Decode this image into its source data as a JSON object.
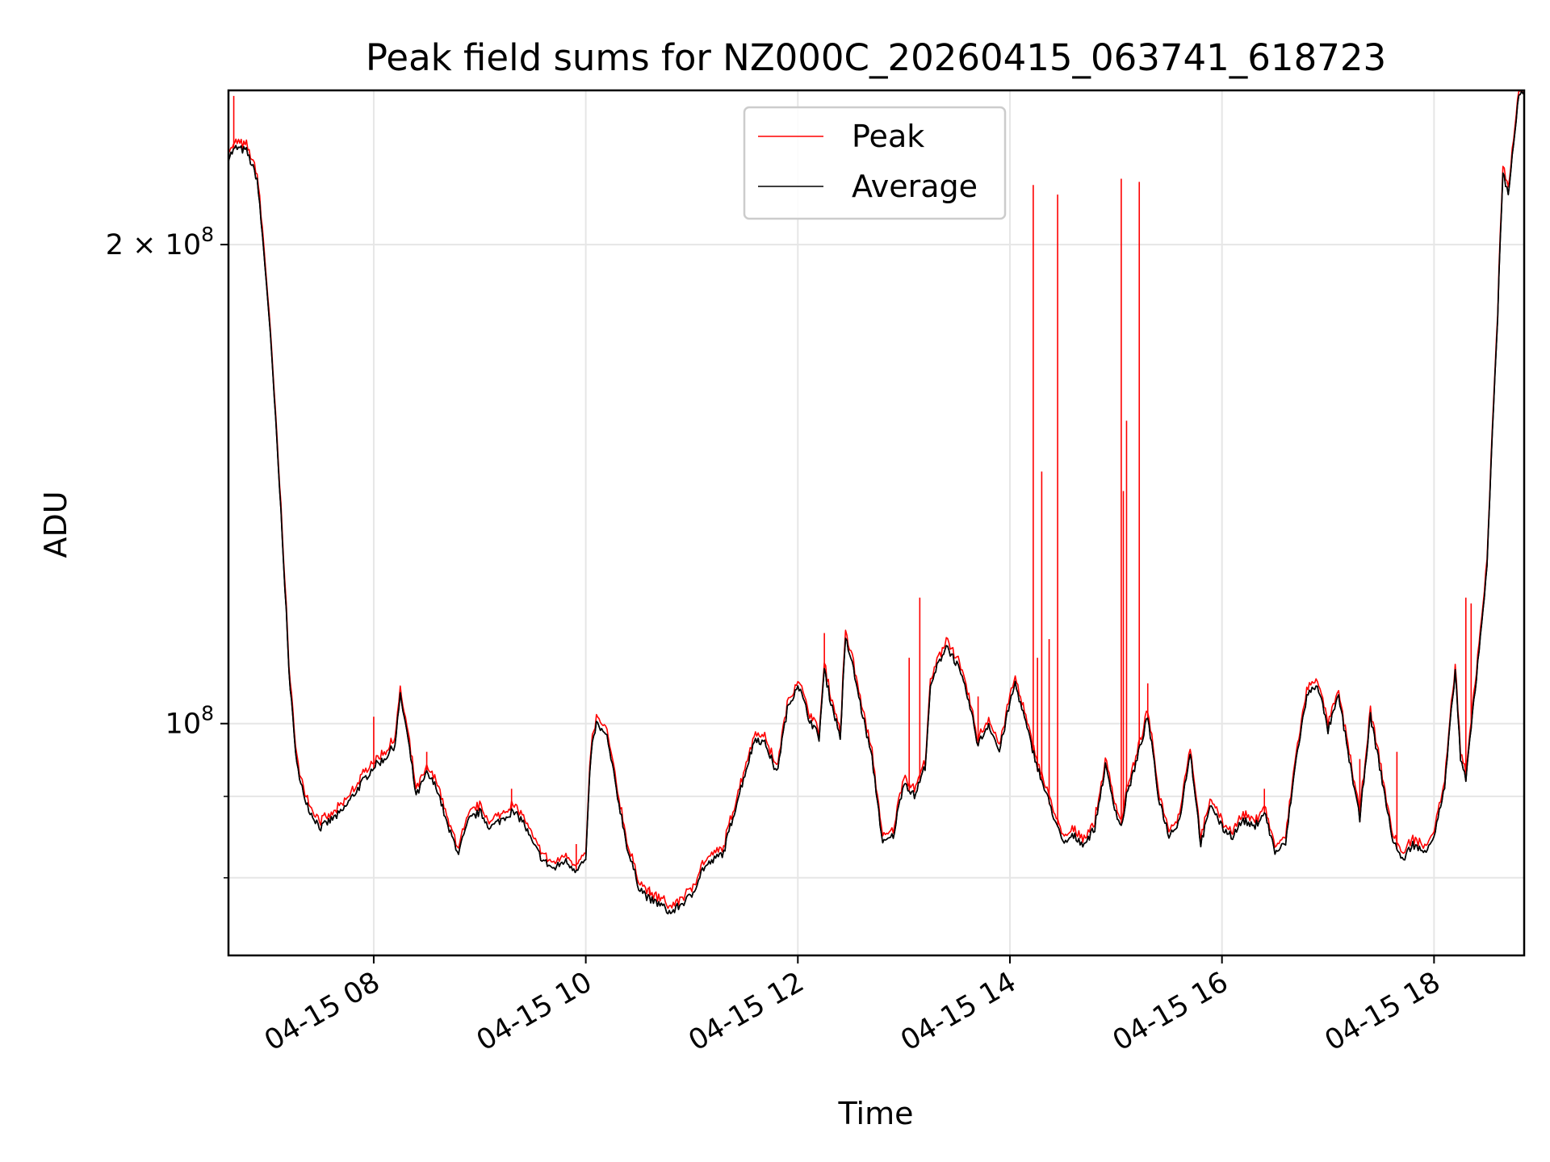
{
  "chart_data": {
    "type": "line",
    "title": "Peak field sums for NZ000C_20260415_063741_618723",
    "xlabel": "Time",
    "ylabel": "ADU",
    "yscale": "log",
    "ylim": [
      71500000,
      250000000
    ],
    "xlim_hours": [
      6.63,
      18.85
    ],
    "grid": true,
    "legend_position": "upper center",
    "x_ticks": [
      {
        "hour": 8,
        "label": "04-15 08"
      },
      {
        "hour": 10,
        "label": "04-15 10"
      },
      {
        "hour": 12,
        "label": "04-15 12"
      },
      {
        "hour": 14,
        "label": "04-15 14"
      },
      {
        "hour": 16,
        "label": "04-15 16"
      },
      {
        "hour": 18,
        "label": "04-15 18"
      }
    ],
    "y_ticks_major": [
      {
        "value": 100000000,
        "label_base": "10",
        "label_exp": "8"
      },
      {
        "value": 200000000,
        "label_base": "2 × 10",
        "label_exp": "8"
      }
    ],
    "y_ticks_minor": [
      80000000,
      90000000
    ],
    "average_points": [
      [
        6.63,
        227
      ],
      [
        6.7,
        230
      ],
      [
        6.8,
        229
      ],
      [
        6.9,
        220
      ],
      [
        7.0,
        185
      ],
      [
        7.1,
        145
      ],
      [
        7.2,
        108
      ],
      [
        7.25,
        98
      ],
      [
        7.3,
        92
      ],
      [
        7.4,
        88
      ],
      [
        7.5,
        86
      ],
      [
        7.6,
        87
      ],
      [
        7.7,
        88
      ],
      [
        7.8,
        90
      ],
      [
        7.9,
        92
      ],
      [
        8.0,
        94
      ],
      [
        8.1,
        95
      ],
      [
        8.2,
        97
      ],
      [
        8.25,
        104
      ],
      [
        8.3,
        100
      ],
      [
        8.35,
        95
      ],
      [
        8.4,
        90
      ],
      [
        8.5,
        93
      ],
      [
        8.6,
        91
      ],
      [
        8.7,
        86
      ],
      [
        8.8,
        83
      ],
      [
        8.9,
        87
      ],
      [
        9.0,
        88
      ],
      [
        9.1,
        86
      ],
      [
        9.2,
        87
      ],
      [
        9.3,
        88
      ],
      [
        9.4,
        87
      ],
      [
        9.5,
        84
      ],
      [
        9.6,
        82
      ],
      [
        9.7,
        81
      ],
      [
        9.8,
        82
      ],
      [
        9.9,
        81
      ],
      [
        10.0,
        82
      ],
      [
        10.05,
        96
      ],
      [
        10.1,
        100
      ],
      [
        10.2,
        98
      ],
      [
        10.3,
        90
      ],
      [
        10.4,
        83
      ],
      [
        10.5,
        79
      ],
      [
        10.6,
        77.5
      ],
      [
        10.7,
        77
      ],
      [
        10.8,
        76
      ],
      [
        10.9,
        77
      ],
      [
        11.0,
        78
      ],
      [
        11.1,
        81
      ],
      [
        11.2,
        82
      ],
      [
        11.3,
        83
      ],
      [
        11.4,
        88
      ],
      [
        11.5,
        93
      ],
      [
        11.6,
        98
      ],
      [
        11.7,
        97
      ],
      [
        11.8,
        93
      ],
      [
        11.9,
        102
      ],
      [
        12.0,
        106
      ],
      [
        12.1,
        101
      ],
      [
        12.2,
        98
      ],
      [
        12.25,
        108
      ],
      [
        12.3,
        104
      ],
      [
        12.4,
        98
      ],
      [
        12.45,
        113
      ],
      [
        12.5,
        110
      ],
      [
        12.6,
        102
      ],
      [
        12.7,
        95
      ],
      [
        12.8,
        84
      ],
      [
        12.9,
        85
      ],
      [
        13.0,
        92
      ],
      [
        13.1,
        90
      ],
      [
        13.2,
        94
      ],
      [
        13.25,
        105
      ],
      [
        13.3,
        108
      ],
      [
        13.4,
        112
      ],
      [
        13.5,
        109
      ],
      [
        13.6,
        104
      ],
      [
        13.7,
        97
      ],
      [
        13.8,
        100
      ],
      [
        13.9,
        96
      ],
      [
        14.0,
        103
      ],
      [
        14.05,
        106
      ],
      [
        14.1,
        103
      ],
      [
        14.2,
        97
      ],
      [
        14.3,
        92
      ],
      [
        14.4,
        88
      ],
      [
        14.5,
        84
      ],
      [
        14.6,
        85
      ],
      [
        14.7,
        84
      ],
      [
        14.8,
        86
      ],
      [
        14.9,
        94
      ],
      [
        15.0,
        88
      ],
      [
        15.05,
        86
      ],
      [
        15.1,
        90
      ],
      [
        15.2,
        95
      ],
      [
        15.3,
        101
      ],
      [
        15.4,
        90
      ],
      [
        15.5,
        85
      ],
      [
        15.6,
        87
      ],
      [
        15.7,
        96
      ],
      [
        15.8,
        84
      ],
      [
        15.9,
        89
      ],
      [
        16.0,
        86
      ],
      [
        16.1,
        85
      ],
      [
        16.2,
        87
      ],
      [
        16.3,
        86
      ],
      [
        16.4,
        88
      ],
      [
        16.5,
        83
      ],
      [
        16.6,
        84
      ],
      [
        16.7,
        95
      ],
      [
        16.8,
        104
      ],
      [
        16.9,
        106
      ],
      [
        17.0,
        99
      ],
      [
        17.1,
        104
      ],
      [
        17.2,
        95
      ],
      [
        17.3,
        87
      ],
      [
        17.4,
        101
      ],
      [
        17.5,
        93
      ],
      [
        17.6,
        85
      ],
      [
        17.7,
        82
      ],
      [
        17.8,
        84
      ],
      [
        17.9,
        83
      ],
      [
        18.0,
        85
      ],
      [
        18.1,
        91
      ],
      [
        18.2,
        108
      ],
      [
        18.25,
        95
      ],
      [
        18.3,
        92
      ],
      [
        18.4,
        107
      ],
      [
        18.5,
        125
      ],
      [
        18.6,
        180
      ],
      [
        18.65,
        222
      ],
      [
        18.7,
        215
      ],
      [
        18.8,
        248
      ],
      [
        18.85,
        250
      ]
    ],
    "peak_spikes": [
      [
        6.68,
        248
      ],
      [
        8.0,
        101
      ],
      [
        8.5,
        96
      ],
      [
        9.3,
        91
      ],
      [
        9.91,
        84
      ],
      [
        10.6,
        79
      ],
      [
        12.25,
        114
      ],
      [
        13.05,
        110
      ],
      [
        13.15,
        120
      ],
      [
        13.7,
        104
      ],
      [
        14.22,
        218
      ],
      [
        14.26,
        110
      ],
      [
        14.3,
        144
      ],
      [
        14.37,
        113
      ],
      [
        14.45,
        215
      ],
      [
        15.05,
        220
      ],
      [
        15.07,
        140
      ],
      [
        15.1,
        155
      ],
      [
        15.22,
        219
      ],
      [
        15.3,
        106
      ],
      [
        16.4,
        91
      ],
      [
        17.3,
        95
      ],
      [
        17.65,
        96
      ],
      [
        18.3,
        120
      ],
      [
        18.35,
        119
      ]
    ]
  },
  "legend": {
    "peak_label": "Peak",
    "average_label": "Average"
  },
  "colors": {
    "peak": "#ff0000",
    "average": "#000000",
    "grid": "#e6e6e6"
  }
}
